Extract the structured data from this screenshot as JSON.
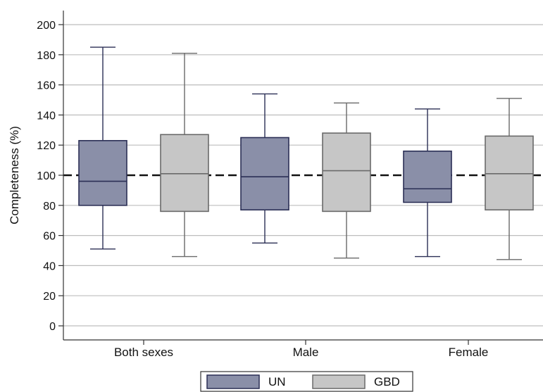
{
  "chart_data": {
    "type": "box",
    "title": "",
    "xlabel": "",
    "ylabel": "Completeness (%)",
    "ylim": [
      0,
      200
    ],
    "yticks": [
      0,
      20,
      40,
      60,
      80,
      100,
      120,
      140,
      160,
      180,
      200
    ],
    "grid": true,
    "reference_line": {
      "y": 100,
      "style": "dashed"
    },
    "legend_position": "bottom-center",
    "categories": [
      "Both sexes",
      "Male",
      "Female"
    ],
    "series": [
      {
        "name": "UN",
        "fill": "#8a8fa8",
        "stroke": "#2b2f55",
        "boxes": [
          {
            "min": 51,
            "q1": 80,
            "median": 96,
            "q3": 123,
            "max": 185
          },
          {
            "min": 55,
            "q1": 77,
            "median": 99,
            "q3": 125,
            "max": 154
          },
          {
            "min": 46,
            "q1": 82,
            "median": 91,
            "q3": 116,
            "max": 144
          }
        ]
      },
      {
        "name": "GBD",
        "fill": "#c6c6c6",
        "stroke": "#6a6a6a",
        "boxes": [
          {
            "min": 46,
            "q1": 76,
            "median": 101,
            "q3": 127,
            "max": 181
          },
          {
            "min": 45,
            "q1": 76,
            "median": 103,
            "q3": 128,
            "max": 148
          },
          {
            "min": 44,
            "q1": 77,
            "median": 101,
            "q3": 126,
            "max": 151
          }
        ]
      }
    ]
  }
}
